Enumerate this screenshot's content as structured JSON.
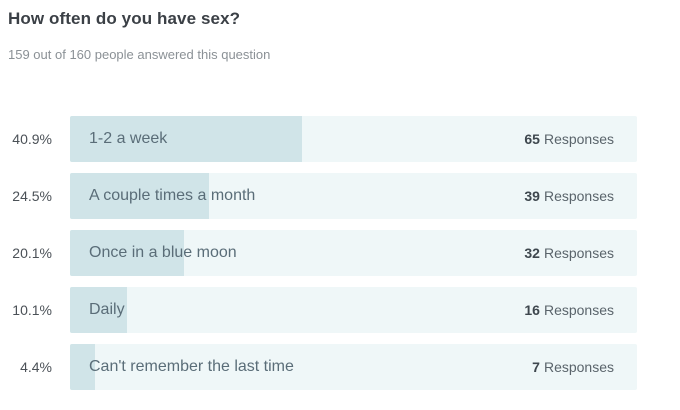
{
  "question": "How often do you have sex?",
  "answered_text": "159 out of 160 people answered this question",
  "responses_word": "Responses",
  "options": [
    {
      "percent": "40.9%",
      "fraction": 0.409,
      "label": "1-2 a week",
      "count": "65"
    },
    {
      "percent": "24.5%",
      "fraction": 0.245,
      "label": "A couple times a month",
      "count": "39"
    },
    {
      "percent": "20.1%",
      "fraction": 0.201,
      "label": "Once in a blue moon",
      "count": "32"
    },
    {
      "percent": "10.1%",
      "fraction": 0.101,
      "label": "Daily",
      "count": "16"
    },
    {
      "percent": "4.4%",
      "fraction": 0.044,
      "label": "Can't remember the last time",
      "count": "7"
    }
  ]
}
